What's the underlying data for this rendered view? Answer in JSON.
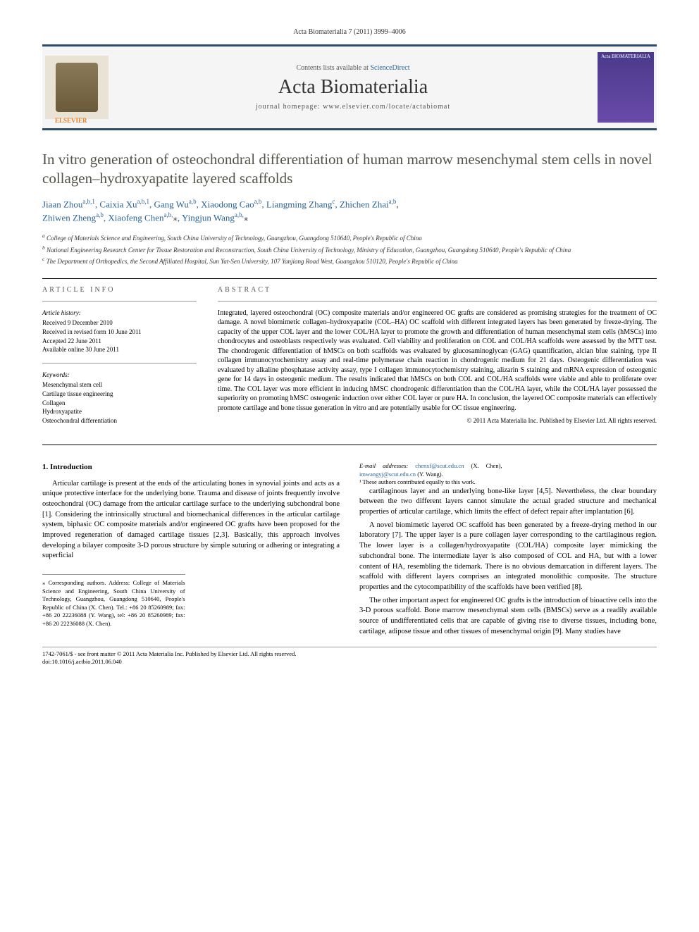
{
  "header": {
    "citation": "Acta Biomaterialia 7 (2011) 3999–4006",
    "contents_line": "Contents lists available at",
    "sd_label": "ScienceDirect",
    "journal": "Acta Biomaterialia",
    "homepage_label": "journal homepage:",
    "homepage_url": "www.elsevier.com/locate/actabiomat",
    "publisher": "ELSEVIER",
    "cover_title": "Acta BIOMATERIALIA"
  },
  "article": {
    "title": "In vitro generation of osteochondral differentiation of human marrow mesenchymal stem cells in novel collagen–hydroxyapatite layered scaffolds",
    "authors_line_1": "Jiaan Zhou",
    "sup_1": "a,b,1",
    "author_2": ", Caixia Xu",
    "sup_2": "a,b,1",
    "author_3": ", Gang Wu",
    "sup_3": "a,b",
    "author_4": ", Xiaodong Cao",
    "sup_4": "a,b",
    "author_5": ", Liangming Zhang",
    "sup_5": "c",
    "author_6": ", Zhichen Zhai",
    "sup_6": "a,b",
    "author_7": "Zhiwen Zheng",
    "sup_7": "a,b",
    "author_8": ", Xiaofeng Chen",
    "sup_8": "a,b,",
    "star_8": "⁎",
    "author_9": ", Yingjun Wang",
    "sup_9": "a,b,",
    "star_9": "⁎",
    "affiliations": {
      "a": "College of Materials Science and Engineering, South China University of Technology, Guangzhou, Guangdong 510640, People's Republic of China",
      "b": "National Engineering Research Center for Tissue Restoration and Reconstruction, South China University of Technology, Ministry of Education, Guangzhou, Guangdong 510640, People's Republic of China",
      "c": "The Department of Orthopedics, the Second Affiliated Hospital, Sun Yat-Sen University, 107 Yanjiang Road West, Guangzhou 510120, People's Republic of China"
    }
  },
  "info": {
    "section_head": "ARTICLE INFO",
    "history_head": "Article history:",
    "received": "Received 9 December 2010",
    "revised": "Received in revised form 10 June 2011",
    "accepted": "Accepted 22 June 2011",
    "online": "Available online 30 June 2011",
    "keywords_head": "Keywords:",
    "kw1": "Mesenchymal stem cell",
    "kw2": "Cartilage tissue engineering",
    "kw3": "Collagen",
    "kw4": "Hydroxyapatite",
    "kw5": "Osteochondral differentiation"
  },
  "abstract": {
    "head": "ABSTRACT",
    "text": "Integrated, layered osteochondral (OC) composite materials and/or engineered OC grafts are considered as promising strategies for the treatment of OC damage. A novel biomimetic collagen–hydroxyapatite (COL–HA) OC scaffold with different integrated layers has been generated by freeze-drying. The capacity of the upper COL layer and the lower COL/HA layer to promote the growth and differentiation of human mesenchymal stem cells (hMSCs) into chondrocytes and osteoblasts respectively was evaluated. Cell viability and proliferation on COL and COL/HA scaffolds were assessed by the MTT test. The chondrogenic differentiation of hMSCs on both scaffolds was evaluated by glucosaminoglycan (GAG) quantification, alcian blue staining, type II collagen immunocytochemistry assay and real-time polymerase chain reaction in chondrogenic medium for 21 days. Osteogenic differentiation was evaluated by alkaline phosphatase activity assay, type I collagen immunocytochemistry staining, alizarin S staining and mRNA expression of osteogenic gene for 14 days in osteogenic medium. The results indicated that hMSCs on both COL and COL/HA scaffolds were viable and able to proliferate over time. The COL layer was more efficient in inducing hMSC chondrogenic differentiation than the COL/HA layer, while the COL/HA layer possessed the superiority on promoting hMSC osteogenic induction over either COL layer or pure HA. In conclusion, the layered OC composite materials can effectively promote cartilage and bone tissue generation in vitro and are potentially usable for OC tissue engineering.",
    "copyright": "© 2011 Acta Materialia Inc. Published by Elsevier Ltd. All rights reserved."
  },
  "body": {
    "intro_head": "1. Introduction",
    "p1": "Articular cartilage is present at the ends of the articulating bones in synovial joints and acts as a unique protective interface for the underlying bone. Trauma and disease of joints frequently involve osteochondral (OC) damage from the articular cartilage surface to the underlying subchondral bone [1]. Considering the intrinsically structural and biomechanical differences in the articular cartilage system, biphasic OC composite materials and/or engineered OC grafts have been proposed for the improved regeneration of damaged cartilage tissues [2,3]. Basically, this approach involves developing a bilayer composite 3-D porous structure by simple suturing or adhering or integrating a superficial",
    "p2": "cartilaginous layer and an underlying bone-like layer [4,5]. Nevertheless, the clear boundary between the two different layers cannot simulate the actual graded structure and mechanical properties of articular cartilage, which limits the effect of defect repair after implantation [6].",
    "p3": "A novel biomimetic layered OC scaffold has been generated by a freeze-drying method in our laboratory [7]. The upper layer is a pure collagen layer corresponding to the cartilaginous region. The lower layer is a collagen/hydroxyapatite (COL/HA) composite layer mimicking the subchondral bone. The intermediate layer is also composed of COL and HA, but with a lower content of HA, resembling the tidemark. There is no obvious demarcation in different layers. The scaffold with different layers comprises an integrated monolithic composite. The structure properties and the cytocompatibility of the scaffolds have been verified [8].",
    "p4": "The other important aspect for engineered OC grafts is the introduction of bioactive cells into the 3-D porous scaffold. Bone marrow mesenchymal stem cells (BMSCs) serve as a readily available source of undifferentiated cells that are capable of giving rise to diverse tissues, including bone, cartilage, adipose tissue and other tissues of mesenchymal origin [9]. Many studies have"
  },
  "footnotes": {
    "corresponding": "⁎ Corresponding authors. Address: College of Materials Science and Engineering, South China University of Technology, Guangzhou, Guangdong 510640, People's Republic of China (X. Chen). Tel.: +86 20 85260989; fax: +86 20 22236088 (Y. Wang), tel: +86 20 85260989; fax: +86 20 22236088 (X. Chen).",
    "emails_label": "E-mail addresses:",
    "email1": "chenxf@scut.edu.cn",
    "email1_who": " (X. Chen), ",
    "email2": "imwangyj@scut.edu.cn",
    "email2_who": "(Y. Wang).",
    "equal": "¹ These authors contributed equally to this work.",
    "doi_line1": "1742-7061/$ - see front matter © 2011 Acta Materialia Inc. Published by Elsevier Ltd. All rights reserved.",
    "doi_line2": "doi:10.1016/j.actbio.2011.06.040"
  },
  "colors": {
    "accent": "#2a6496",
    "bar": "#2a4d6e",
    "title_gray": "#54534a"
  }
}
